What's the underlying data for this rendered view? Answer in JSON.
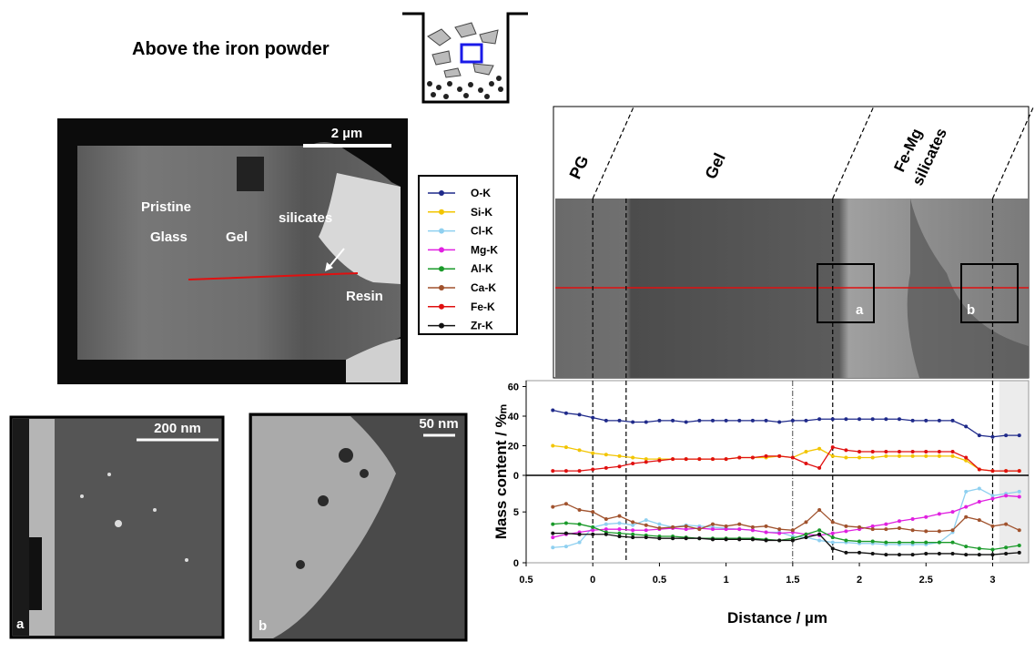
{
  "header": {
    "title": "Above the iron powder"
  },
  "tem_image": {
    "scale_bar": "2 µm",
    "labels": [
      "Pristine",
      "Glass",
      "Gel",
      "silicates",
      "Resin"
    ]
  },
  "inset_a": {
    "scale_bar": "200 nm",
    "label": "a"
  },
  "inset_b": {
    "scale_bar": "50 nm",
    "label": "b"
  },
  "stem_profile": {
    "zones": [
      "PG",
      "Gel",
      "Fe-Mg",
      "silicates"
    ],
    "boxes": [
      "a",
      "b"
    ]
  },
  "chart_data": {
    "type": "line",
    "xlabel": "Distance / µm",
    "ylabel": "Mass content / %ₘ",
    "x": [
      -0.3,
      -0.2,
      -0.1,
      0,
      0.1,
      0.2,
      0.3,
      0.4,
      0.5,
      0.6,
      0.7,
      0.8,
      0.9,
      1.0,
      1.1,
      1.2,
      1.3,
      1.4,
      1.5,
      1.6,
      1.7,
      1.8,
      1.9,
      2.0,
      2.1,
      2.2,
      2.3,
      2.4,
      2.5,
      2.6,
      2.7,
      2.8,
      2.9,
      3.0,
      3.1,
      3.2
    ],
    "xlim": [
      -0.5,
      3.27
    ],
    "xticks": [
      {
        "value": -0.5,
        "label": "0.5"
      },
      0,
      0.5,
      1,
      1.5,
      2,
      2.5,
      3
    ],
    "ylim": [
      0,
      64
    ],
    "yticks": [
      0,
      20,
      40,
      60
    ],
    "y2lim": [
      0,
      8.6
    ],
    "y2ticks": [
      0,
      5
    ],
    "vlines": [
      0,
      0.25,
      1.5,
      1.8,
      3.0
    ],
    "series": [
      {
        "name": "O-K",
        "color": "#1f2a8a",
        "values": [
          44,
          42,
          41,
          39,
          37,
          37,
          36,
          36,
          37,
          37,
          36,
          37,
          37,
          37,
          37,
          37,
          37,
          36,
          37,
          37,
          38,
          38,
          38,
          38,
          38,
          38,
          38,
          37,
          37,
          37,
          37,
          33,
          27,
          26,
          27,
          27
        ]
      },
      {
        "name": "Si-K",
        "color": "#f2c500",
        "values": [
          20,
          19,
          17,
          15,
          14,
          13,
          12,
          11,
          11,
          11,
          11,
          11,
          11,
          11,
          12,
          12,
          12,
          13,
          12,
          16,
          18,
          13,
          12,
          12,
          12,
          13,
          13,
          13,
          13,
          13,
          13,
          10,
          4,
          3,
          3,
          3
        ]
      },
      {
        "name": "Cl-K",
        "color": "#8fd0f0",
        "axis": "y2",
        "values": [
          1.5,
          1.6,
          2,
          3.5,
          3.8,
          3.9,
          3.7,
          4.2,
          3.8,
          3.5,
          3.7,
          3.6,
          3.5,
          3.4,
          3.3,
          3.2,
          3.0,
          3.0,
          2.6,
          2.5,
          2.2,
          2.0,
          2.0,
          1.9,
          1.9,
          1.8,
          1.8,
          1.8,
          1.8,
          2.0,
          3.0,
          7.0,
          7.3,
          6.6,
          6.8,
          7.0
        ]
      },
      {
        "name": "Mg-K",
        "color": "#e020e0",
        "axis": "y2",
        "values": [
          2.5,
          2.8,
          3.0,
          3.2,
          3.3,
          3.3,
          3.2,
          3.2,
          3.3,
          3.4,
          3.3,
          3.4,
          3.3,
          3.3,
          3.3,
          3.2,
          3.0,
          2.9,
          3.0,
          2.8,
          2.7,
          2.9,
          3.1,
          3.3,
          3.6,
          3.8,
          4.1,
          4.3,
          4.5,
          4.8,
          5.0,
          5.5,
          6.0,
          6.3,
          6.6,
          6.5
        ]
      },
      {
        "name": "Al-K",
        "color": "#1a9a2a",
        "axis": "y2",
        "values": [
          3.8,
          3.9,
          3.8,
          3.5,
          3.0,
          2.9,
          2.8,
          2.7,
          2.6,
          2.6,
          2.5,
          2.4,
          2.4,
          2.4,
          2.4,
          2.4,
          2.3,
          2.2,
          2.4,
          2.8,
          3.2,
          2.5,
          2.2,
          2.1,
          2.1,
          2.0,
          2.0,
          2.0,
          2.0,
          2.0,
          2.0,
          1.6,
          1.4,
          1.3,
          1.5,
          1.7
        ]
      },
      {
        "name": "Ca-K",
        "color": "#a0522d",
        "axis": "y2",
        "values": [
          5.5,
          5.8,
          5.2,
          5.0,
          4.3,
          4.6,
          4.0,
          3.7,
          3.4,
          3.5,
          3.6,
          3.3,
          3.8,
          3.6,
          3.8,
          3.5,
          3.6,
          3.3,
          3.2,
          4.0,
          5.2,
          4.0,
          3.6,
          3.5,
          3.3,
          3.3,
          3.4,
          3.2,
          3.1,
          3.1,
          3.2,
          4.5,
          4.2,
          3.6,
          3.8,
          3.2
        ]
      },
      {
        "name": "Fe-K",
        "color": "#e01010",
        "values": [
          3,
          3,
          3,
          4,
          5,
          6,
          8,
          9,
          10,
          11,
          11,
          11,
          11,
          11,
          12,
          12,
          13,
          13,
          12,
          8,
          5,
          19,
          17,
          16,
          16,
          16,
          16,
          16,
          16,
          16,
          16,
          12,
          4,
          3,
          3,
          3
        ]
      },
      {
        "name": "Zr-K",
        "color": "#111111",
        "axis": "y2",
        "values": [
          2.9,
          2.9,
          2.8,
          2.8,
          2.8,
          2.6,
          2.5,
          2.5,
          2.4,
          2.4,
          2.4,
          2.4,
          2.3,
          2.3,
          2.3,
          2.3,
          2.2,
          2.2,
          2.2,
          2.5,
          2.8,
          1.4,
          1.0,
          1.0,
          0.9,
          0.8,
          0.8,
          0.8,
          0.9,
          0.9,
          0.9,
          0.8,
          0.8,
          0.8,
          0.9,
          1.0
        ]
      }
    ]
  }
}
